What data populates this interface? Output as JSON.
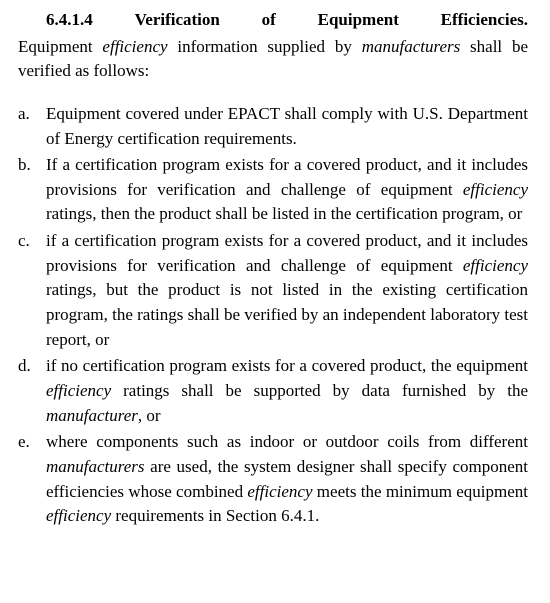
{
  "section": {
    "number": "6.4.1.4",
    "title": "Verification of Equipment Efficiencies.",
    "intro_prefix": "Equipment ",
    "intro_eff": "efficiency",
    "intro_mid": " information supplied by ",
    "intro_manu": "manufacturers",
    "intro_suffix": " shall be verified as follows:"
  },
  "items": [
    {
      "marker": "a.",
      "parts": [
        {
          "t": "Equipment covered under EPACT shall comply with U.S. Department of Energy certification requirements.",
          "i": false
        }
      ]
    },
    {
      "marker": "b.",
      "parts": [
        {
          "t": "If a certification program exists for a covered product, and it includes provisions for verification and challenge of equipment ",
          "i": false
        },
        {
          "t": "efficiency",
          "i": true
        },
        {
          "t": " ratings, then the product shall be listed in the certification program, or",
          "i": false
        }
      ]
    },
    {
      "marker": "c.",
      "parts": [
        {
          "t": "if a certification program exists for a covered product, and it includes provisions for verification and challenge of equipment ",
          "i": false
        },
        {
          "t": "efficiency",
          "i": true
        },
        {
          "t": " ratings, but the product is not listed in the existing certification program, the ratings shall be verified by an independent laboratory test report, or",
          "i": false
        }
      ]
    },
    {
      "marker": "d.",
      "parts": [
        {
          "t": "if no certification program exists for a covered product, the equipment ",
          "i": false
        },
        {
          "t": "efficiency",
          "i": true
        },
        {
          "t": " ratings shall be supported by data furnished by the ",
          "i": false
        },
        {
          "t": "manufacturer",
          "i": true
        },
        {
          "t": ", or",
          "i": false
        }
      ]
    },
    {
      "marker": "e.",
      "parts": [
        {
          "t": "where components such as indoor or outdoor coils from different ",
          "i": false
        },
        {
          "t": "manufacturers",
          "i": true
        },
        {
          "t": " are used, the system designer shall specify component efficiencies whose combined ",
          "i": false
        },
        {
          "t": "efficiency",
          "i": true
        },
        {
          "t": " meets the minimum equipment ",
          "i": false
        },
        {
          "t": "efficiency",
          "i": true
        },
        {
          "t": " requirements in Section 6.4.1.",
          "i": false
        }
      ]
    }
  ]
}
